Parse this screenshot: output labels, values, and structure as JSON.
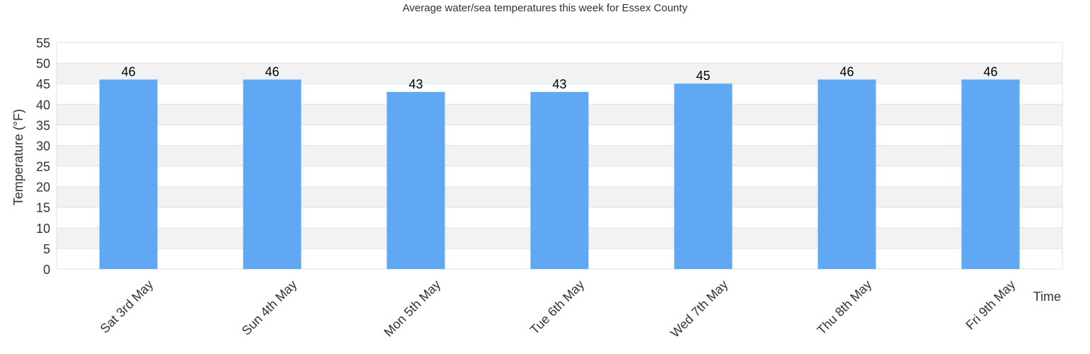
{
  "chart_data": {
    "type": "bar",
    "title": "Average water/sea temperatures this week for Essex County",
    "xlabel": "Time",
    "ylabel": "Temperature (°F)",
    "categories": [
      "Sat 3rd May",
      "Sun 4th May",
      "Mon 5th May",
      "Tue 6th May",
      "Wed 7th May",
      "Thu 8th May",
      "Fri 9th May"
    ],
    "values": [
      46,
      46,
      43,
      43,
      45,
      46,
      46
    ],
    "data_labels": [
      "46",
      "46",
      "43",
      "43",
      "45",
      "46",
      "46"
    ],
    "ylim": [
      0,
      55
    ],
    "yticks": [
      "0",
      "5",
      "10",
      "15",
      "20",
      "25",
      "30",
      "35",
      "40",
      "45",
      "50",
      "55"
    ],
    "grid": true,
    "legend": "none",
    "colors": {
      "bar": "#60a8f4",
      "band": "#f2f2f2",
      "grid": "#e0e0e0",
      "text": "#333333"
    }
  }
}
